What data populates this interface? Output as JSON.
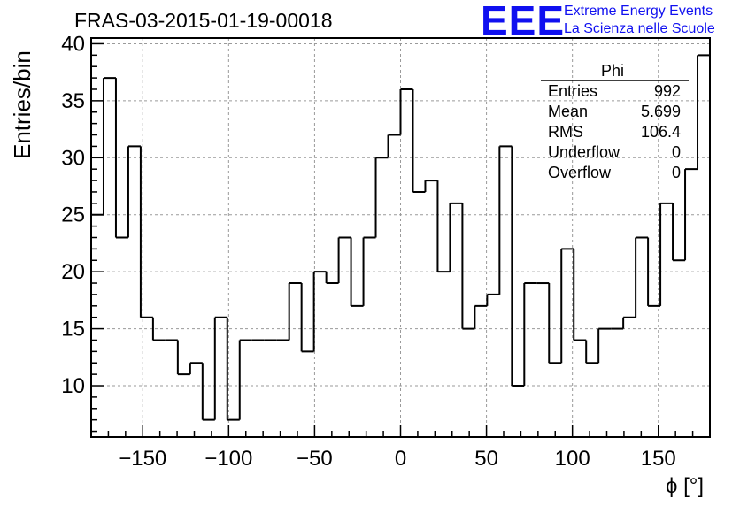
{
  "title": "FRAS-03-2015-01-19-00018",
  "logo": {
    "mark": "EEE",
    "line1": "Extreme Energy Events",
    "line2": "La Scienza nelle Scuole",
    "color": "#1010f0"
  },
  "stats": {
    "name": "Phi",
    "rows": [
      {
        "label": "Entries",
        "value": "992"
      },
      {
        "label": "Mean",
        "value": "5.699"
      },
      {
        "label": "RMS",
        "value": "106.4"
      },
      {
        "label": "Underflow",
        "value": "0"
      },
      {
        "label": "Overflow",
        "value": "0"
      }
    ]
  },
  "chart_data": {
    "type": "histogram",
    "title": "FRAS-03-2015-01-19-00018",
    "xlabel": "ϕ [°]",
    "ylabel": "Entries/bin",
    "xlim": [
      -180,
      180
    ],
    "ylim": [
      5.5,
      40.5
    ],
    "bin_width": 7.2,
    "bin_edges_start": -180,
    "values": [
      25,
      37,
      23,
      31,
      16,
      14,
      14,
      11,
      12,
      7,
      16,
      7,
      14,
      14,
      14,
      14,
      19,
      13,
      20,
      19,
      23,
      17,
      23,
      30,
      32,
      36,
      27,
      28,
      20,
      26,
      15,
      17,
      18,
      31,
      10,
      19,
      19,
      12,
      22,
      14,
      12,
      15,
      15,
      16,
      23,
      17,
      26,
      21,
      29,
      39
    ],
    "x_ticks": [
      -150,
      -100,
      -50,
      0,
      50,
      100,
      150
    ],
    "x_tick_labels": [
      "−150",
      "−100",
      "−50",
      "0",
      "50",
      "100",
      "150"
    ],
    "y_ticks": [
      10,
      15,
      20,
      25,
      30,
      35,
      40
    ],
    "y_tick_labels": [
      "10",
      "15",
      "20",
      "25",
      "30",
      "35",
      "40"
    ],
    "grid": true,
    "line_color": "#000000"
  }
}
